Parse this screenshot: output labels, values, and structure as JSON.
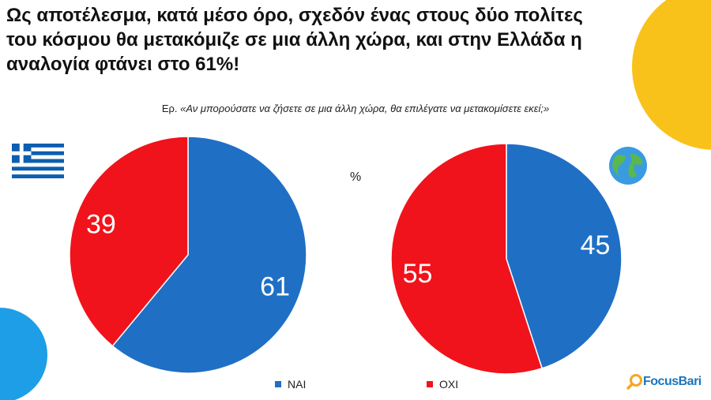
{
  "title": "Ως αποτέλεσμα, κατά μέσο όρο, σχεδόν ένας στους δύο πολίτες του κόσμου θα μετακόμιζε σε μια άλλη χώρα, και στην Ελλάδα η αναλογία φτάνει στο 61%!",
  "question_prefix": "Ερ.",
  "question": "«Αν μπορούσατε να ζήσετε σε μια άλλη χώρα, θα επιλέγατε να μετακομίσετε εκεί;»",
  "unit": "%",
  "logo": "FocusBari",
  "colors": {
    "yes": "#1f6fc5",
    "no": "#f0131b",
    "accent_yellow": "#f9c21b",
    "accent_blue": "#1e9ee6"
  },
  "legend": [
    {
      "label": "NAI",
      "color": "#1f6fc5"
    },
    {
      "label": "OXI",
      "color": "#f0131b"
    }
  ],
  "chart_data": [
    {
      "type": "pie",
      "group_icon": "greek-flag",
      "categories": [
        "NAI",
        "OXI"
      ],
      "values": [
        61,
        39
      ],
      "data_labels": [
        "61",
        "39"
      ]
    },
    {
      "type": "pie",
      "group_icon": "globe",
      "categories": [
        "NAI",
        "OXI"
      ],
      "values": [
        45,
        55
      ],
      "data_labels": [
        "45",
        "55"
      ]
    }
  ]
}
